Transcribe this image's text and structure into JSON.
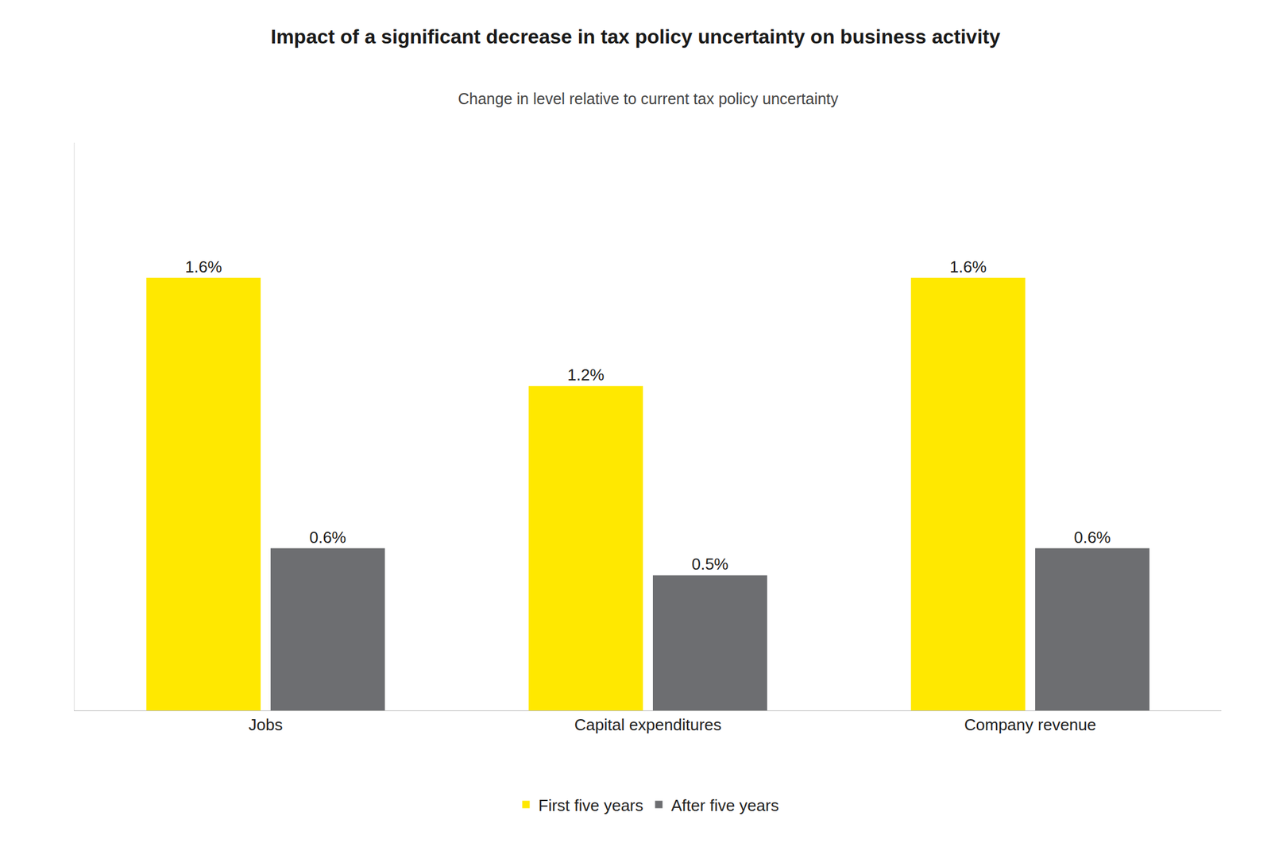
{
  "chart_data": {
    "type": "bar",
    "title": "Impact of a significant decrease in tax policy uncertainty on business activity",
    "subtitle": "Change in level relative to current tax policy uncertainty",
    "categories": [
      "Jobs",
      "Capital expenditures",
      "Company revenue"
    ],
    "series": [
      {
        "name": "First five years",
        "color": "#FFE800",
        "values": [
          1.6,
          1.2,
          1.6
        ],
        "value_labels": [
          "1.6%",
          "1.2%",
          "1.6%"
        ]
      },
      {
        "name": "After five years",
        "color": "#6d6e71",
        "values": [
          0.6,
          0.5,
          0.6
        ],
        "value_labels": [
          "0.6%",
          "0.5%",
          "0.6%"
        ]
      }
    ],
    "ylim": [
      0,
      2.1
    ],
    "data_labels": true,
    "tick_labels": "x",
    "legend": "bottom",
    "grid": false
  }
}
